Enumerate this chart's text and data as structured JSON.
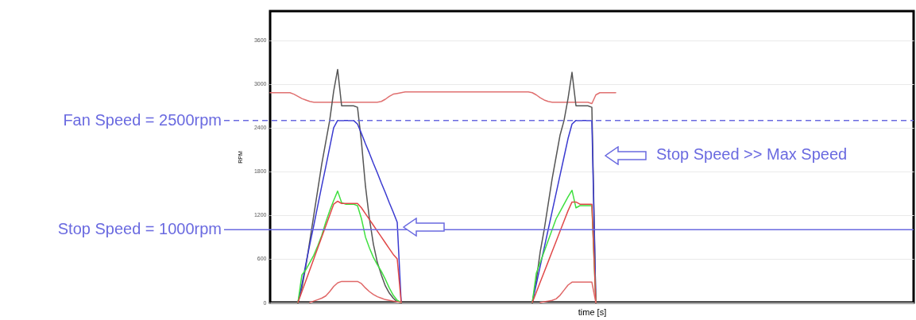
{
  "chart_data": {
    "type": "line",
    "xlabel": "time [s]",
    "ylabel": "RPM",
    "categories": [
      null,
      null,
      null,
      null,
      null,
      null,
      null,
      null,
      null,
      null,
      null,
      null,
      null,
      null,
      null,
      null,
      null,
      null,
      null,
      null,
      null,
      null,
      null,
      null,
      null,
      null,
      null,
      null,
      null,
      null,
      null,
      null,
      null,
      null,
      null,
      null,
      null,
      null,
      null,
      null,
      null,
      null,
      null,
      null,
      null,
      null,
      null,
      null,
      null,
      null,
      null,
      null,
      null,
      null,
      null,
      null,
      null,
      null,
      null,
      null,
      null,
      null,
      null,
      null,
      null,
      null,
      null,
      null,
      null,
      null,
      null,
      null,
      null,
      null,
      null,
      null,
      null,
      null,
      null,
      null,
      null,
      null,
      null,
      null,
      null,
      null,
      null,
      null,
      null,
      null,
      null,
      null,
      null,
      null,
      null,
      null,
      null,
      null,
      null,
      null,
      null,
      null,
      null,
      null,
      null,
      null,
      null,
      null,
      null,
      null,
      null,
      null,
      null,
      null,
      null,
      null,
      null,
      null,
      null,
      null,
      null,
      null,
      null,
      null,
      null,
      null,
      null,
      null,
      null,
      null,
      null,
      null,
      null,
      null,
      null,
      null,
      null,
      null,
      null,
      null,
      null,
      null,
      null,
      null,
      null,
      null,
      null,
      null,
      null,
      null,
      null,
      null,
      null,
      null,
      null,
      null,
      null,
      null,
      null,
      null,
      null,
      null,
      null
    ],
    "series": [
      {
        "color": "#e07070",
        "values": [
          2880,
          2880,
          2880,
          2880,
          2880,
          2880,
          2860,
          2830,
          2800,
          2780,
          2760,
          2750,
          2750,
          2750,
          2750,
          2750,
          2750,
          2750,
          2750,
          2750,
          2750,
          2750,
          2750,
          2750,
          2750,
          2750,
          2750,
          2750,
          2760,
          2790,
          2830,
          2860,
          2870,
          2880,
          2890,
          2890,
          2890,
          2890,
          2890,
          2890,
          2890,
          2890,
          2890,
          2890,
          2890,
          2890,
          2890,
          2890,
          2890,
          2890,
          2890,
          2890,
          2890,
          2890,
          2890,
          2890,
          2890,
          2890,
          2890,
          2890,
          2890,
          2890,
          2890,
          2890,
          2890,
          2890,
          2880,
          2850,
          2810,
          2780,
          2760,
          2750,
          2750,
          2750,
          2750,
          2750,
          2750,
          2750,
          2750,
          2750,
          2750,
          2730,
          2850,
          2880,
          2880,
          2880,
          2880,
          2880,
          null,
          null,
          null,
          null,
          null,
          null,
          null,
          null,
          null,
          null,
          null,
          null,
          null,
          null,
          null,
          null,
          null,
          null,
          null,
          null,
          null,
          null,
          null,
          null,
          null,
          null,
          null,
          null,
          null,
          null,
          null,
          null,
          null,
          null,
          null,
          null,
          null,
          null,
          null,
          null,
          null,
          null,
          null,
          null,
          null,
          null,
          null,
          null,
          null,
          null,
          null,
          null,
          null,
          null,
          null,
          null,
          null,
          null,
          null,
          null,
          null,
          null,
          null,
          null,
          null,
          null,
          null,
          null,
          null,
          null,
          null,
          null,
          null,
          null,
          null
        ]
      },
      {
        "color": "#555555",
        "values": [
          null,
          null,
          null,
          null,
          null,
          null,
          null,
          0,
          200,
          500,
          850,
          1200,
          1550,
          1900,
          2200,
          2500,
          2900,
          3200,
          2700,
          2700,
          2700,
          2700,
          2680,
          2200,
          1600,
          1150,
          800,
          550,
          380,
          230,
          130,
          60,
          10,
          0,
          null,
          null,
          null,
          null,
          null,
          null,
          null,
          null,
          null,
          null,
          null,
          null,
          null,
          null,
          null,
          null,
          null,
          null,
          null,
          null,
          null,
          null,
          null,
          null,
          null,
          null,
          null,
          null,
          null,
          null,
          null,
          null,
          0,
          300,
          700,
          1000,
          1350,
          1700,
          2000,
          2300,
          2500,
          2800,
          3160,
          2700,
          2700,
          2700,
          2700,
          2680,
          0,
          null,
          null,
          null,
          null,
          null,
          null,
          null,
          null,
          null,
          null,
          null,
          null,
          null,
          null,
          null,
          null,
          null,
          null,
          null,
          null,
          null,
          null,
          null,
          null,
          null,
          null,
          null,
          null,
          null,
          null,
          null,
          null,
          null,
          null,
          null,
          null,
          null,
          null,
          null,
          null,
          null,
          null,
          null,
          null,
          null,
          null,
          null,
          null,
          null,
          null,
          null,
          null,
          null,
          null,
          null,
          null,
          null,
          null,
          null,
          null,
          null,
          null,
          null,
          null,
          null,
          null,
          null,
          null,
          null,
          null,
          null,
          null,
          null,
          null,
          null,
          null,
          null,
          null,
          null,
          null
        ]
      },
      {
        "color": "#3a3ad0",
        "values": [
          null,
          null,
          null,
          null,
          null,
          null,
          null,
          0,
          250,
          530,
          800,
          1060,
          1330,
          1600,
          1860,
          2130,
          2400,
          2500,
          2500,
          2500,
          2500,
          2500,
          2450,
          2320,
          2180,
          2050,
          1910,
          1780,
          1640,
          1510,
          1370,
          1240,
          1100,
          0,
          null,
          null,
          null,
          null,
          null,
          null,
          null,
          null,
          null,
          null,
          null,
          null,
          null,
          null,
          null,
          null,
          null,
          null,
          null,
          null,
          null,
          null,
          null,
          null,
          null,
          null,
          null,
          null,
          null,
          null,
          null,
          null,
          0,
          250,
          500,
          750,
          1000,
          1250,
          1500,
          1750,
          2000,
          2250,
          2450,
          2500,
          2500,
          2500,
          2500,
          2500,
          0,
          null,
          null,
          null,
          null,
          null,
          null,
          null,
          null,
          null,
          null,
          null,
          null,
          null,
          null,
          null,
          null,
          null,
          null,
          null,
          null,
          null,
          null,
          null,
          null,
          null,
          null,
          null,
          null,
          null,
          null,
          null,
          null,
          null,
          null,
          null,
          null,
          null,
          null,
          null,
          null,
          null,
          null,
          null,
          null,
          null,
          null,
          null,
          null,
          null,
          null,
          null,
          null,
          null,
          null,
          null,
          null,
          null,
          null,
          null,
          null,
          null,
          null,
          null,
          null,
          null,
          null,
          null,
          null,
          null,
          null,
          null,
          null,
          null,
          null,
          null,
          null,
          null,
          null,
          null,
          null
        ]
      },
      {
        "color": "#40e040",
        "values": [
          null,
          null,
          null,
          null,
          null,
          null,
          null,
          0,
          380,
          450,
          550,
          650,
          780,
          920,
          1100,
          1260,
          1400,
          1530,
          1370,
          1350,
          1350,
          1350,
          1330,
          1150,
          900,
          750,
          620,
          520,
          430,
          320,
          200,
          100,
          30,
          0,
          null,
          null,
          null,
          null,
          null,
          null,
          null,
          null,
          null,
          null,
          null,
          null,
          null,
          null,
          null,
          null,
          null,
          null,
          null,
          null,
          null,
          null,
          null,
          null,
          null,
          null,
          null,
          null,
          null,
          null,
          null,
          null,
          0,
          400,
          550,
          700,
          850,
          1000,
          1150,
          1250,
          1350,
          1450,
          1540,
          1300,
          1330,
          1330,
          1330,
          1330,
          0,
          null,
          null,
          null,
          null,
          null,
          null,
          null,
          null,
          null,
          null,
          null,
          null,
          null,
          null,
          null,
          null,
          null,
          null,
          null,
          null,
          null,
          null,
          null,
          null,
          null,
          null,
          null,
          null,
          null,
          null,
          null,
          null,
          null,
          null,
          null,
          null,
          null,
          null,
          null,
          null,
          null,
          null,
          null,
          null,
          null,
          null,
          null,
          null,
          null,
          null,
          null,
          null,
          null,
          null,
          null,
          null,
          null,
          null,
          null,
          null,
          null,
          null,
          null,
          null,
          null,
          null,
          null,
          null,
          null,
          null,
          null,
          null,
          null,
          null,
          null,
          null,
          null,
          null,
          null,
          null
        ]
      },
      {
        "color": "#e04848",
        "values": [
          null,
          null,
          null,
          null,
          null,
          null,
          null,
          0,
          150,
          300,
          450,
          600,
          750,
          900,
          1050,
          1200,
          1350,
          1390,
          1360,
          1360,
          1360,
          1360,
          1360,
          1300,
          1220,
          1140,
          1060,
          980,
          900,
          820,
          740,
          660,
          600,
          0,
          null,
          null,
          null,
          null,
          null,
          null,
          null,
          null,
          null,
          null,
          null,
          null,
          null,
          null,
          null,
          null,
          null,
          null,
          null,
          null,
          null,
          null,
          null,
          null,
          null,
          null,
          null,
          null,
          null,
          null,
          null,
          null,
          0,
          140,
          280,
          420,
          560,
          700,
          840,
          980,
          1120,
          1260,
          1380,
          1380,
          1350,
          1350,
          1350,
          1350,
          0,
          null,
          null,
          null,
          null,
          null,
          null,
          null,
          null,
          null,
          null,
          null,
          null,
          null,
          null,
          null,
          null,
          null,
          null,
          null,
          null,
          null,
          null,
          null,
          null,
          null,
          null,
          null,
          null,
          null,
          null,
          null,
          null,
          null,
          null,
          null,
          null,
          null,
          null,
          null,
          null,
          null,
          null,
          null,
          null,
          null,
          null,
          null,
          null,
          null,
          null,
          null,
          null,
          null,
          null,
          null,
          null,
          null,
          null,
          null,
          null,
          null,
          null,
          null,
          null,
          null,
          null,
          null,
          null,
          null,
          null,
          null,
          null,
          null,
          null,
          null,
          null,
          null,
          null,
          null,
          null
        ]
      },
      {
        "color": "#e06868",
        "values": [
          null,
          null,
          null,
          null,
          null,
          null,
          null,
          null,
          null,
          null,
          0,
          20,
          40,
          60,
          90,
          150,
          220,
          270,
          290,
          290,
          290,
          290,
          290,
          260,
          200,
          150,
          110,
          80,
          60,
          40,
          30,
          20,
          10,
          0,
          null,
          null,
          null,
          null,
          null,
          null,
          null,
          null,
          null,
          null,
          null,
          null,
          null,
          null,
          null,
          null,
          null,
          null,
          null,
          null,
          null,
          null,
          null,
          null,
          null,
          null,
          null,
          null,
          null,
          null,
          null,
          null,
          null,
          null,
          0,
          10,
          20,
          30,
          50,
          100,
          170,
          240,
          280,
          280,
          280,
          280,
          280,
          280,
          0,
          null,
          null,
          null,
          null,
          null,
          null,
          null,
          null,
          null,
          null,
          null,
          null,
          null,
          null,
          null,
          null,
          null,
          null,
          null,
          null,
          null,
          null,
          null,
          null,
          null,
          null,
          null,
          null,
          null,
          null,
          null,
          null,
          null,
          null,
          null,
          null,
          null,
          null,
          null,
          null,
          null,
          null,
          null,
          null,
          null,
          null,
          null,
          null,
          null,
          null,
          null,
          null,
          null,
          null,
          null,
          null,
          null,
          null,
          null,
          null,
          null,
          null,
          null,
          null,
          null,
          null,
          null,
          null,
          null,
          null,
          null,
          null,
          null,
          null,
          null,
          null,
          null,
          null,
          null,
          null
        ]
      }
    ],
    "ylim": [
      0,
      4000
    ],
    "yticks": [
      0,
      600,
      1200,
      1800,
      2400,
      3000,
      3600
    ],
    "grid": "y",
    "ref_lines": [
      {
        "axis": "y",
        "value": 2500,
        "label": "Fan Speed = 2500rpm",
        "color": "#6a6ae0",
        "line_style": "dashed"
      },
      {
        "axis": "y",
        "value": 1000,
        "label": "Stop Speed = 1000rpm",
        "color": "#6a6ae0",
        "line_style": "solid"
      }
    ],
    "annotations": [
      "Stop Speed >> Max Speed"
    ]
  }
}
